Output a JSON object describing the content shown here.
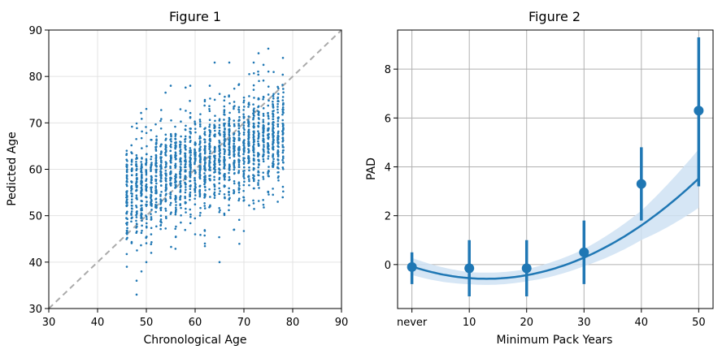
{
  "chart_data": [
    {
      "type": "scatter",
      "title": "Figure 1",
      "xlabel": "Chronological Age",
      "ylabel": "Pedicted Age",
      "xlim": [
        30,
        90
      ],
      "ylim": [
        30,
        90
      ],
      "xticks": [
        "30",
        "40",
        "50",
        "60",
        "70",
        "80",
        "90"
      ],
      "yticks": [
        "30",
        "40",
        "50",
        "60",
        "70",
        "80",
        "90"
      ],
      "grid": true,
      "identity_line": true,
      "point_color": "#1f77b4",
      "identity_color": "#aaaaaa",
      "cloud": {
        "x_range": [
          46,
          78
        ],
        "trend": [
          {
            "x": 46,
            "y": 55
          },
          {
            "x": 62,
            "y": 62
          },
          {
            "x": 78,
            "y": 68
          }
        ],
        "spread": 5.5
      },
      "outliers": [
        [
          48,
          33
        ],
        [
          48,
          36
        ],
        [
          49,
          38
        ],
        [
          50,
          40
        ],
        [
          51,
          42
        ],
        [
          50,
          73
        ],
        [
          55,
          78
        ],
        [
          59,
          78
        ],
        [
          63,
          78
        ],
        [
          64,
          83
        ],
        [
          67,
          83
        ],
        [
          72,
          83
        ],
        [
          73,
          85
        ],
        [
          75,
          86
        ],
        [
          65,
          40
        ],
        [
          62,
          44
        ],
        [
          60,
          46
        ],
        [
          68,
          47
        ],
        [
          78,
          84
        ],
        [
          46,
          39
        ]
      ]
    },
    {
      "type": "line",
      "title": "Figure 2",
      "xlabel": "Minimum Pack Years",
      "ylabel": "PAD",
      "categories": [
        "never",
        "10",
        "20",
        "30",
        "40",
        "50"
      ],
      "xlim": [
        -0.25,
        5.25
      ],
      "ylim": [
        -1.8,
        9.6
      ],
      "yticks": [
        "0",
        "2",
        "4",
        "6",
        "8"
      ],
      "grid": true,
      "color": "#1f77b4",
      "band_color": "#cfe2f3",
      "points": [
        {
          "x": 0,
          "y": -0.1,
          "lo": -0.8,
          "hi": 0.5
        },
        {
          "x": 1,
          "y": -0.15,
          "lo": -1.3,
          "hi": 1.0
        },
        {
          "x": 2,
          "y": -0.15,
          "lo": -1.3,
          "hi": 1.0
        },
        {
          "x": 3,
          "y": 0.5,
          "lo": -0.8,
          "hi": 1.8
        },
        {
          "x": 4,
          "y": 3.3,
          "lo": 1.8,
          "hi": 4.8
        },
        {
          "x": 5,
          "y": 6.3,
          "lo": 3.2,
          "hi": 9.3
        }
      ],
      "fit": {
        "coefficients": [
          0.3,
          -0.78,
          -0.075
        ],
        "band_width": [
          0.35,
          0.25,
          0.25,
          0.35,
          0.6,
          1.2
        ]
      }
    }
  ]
}
